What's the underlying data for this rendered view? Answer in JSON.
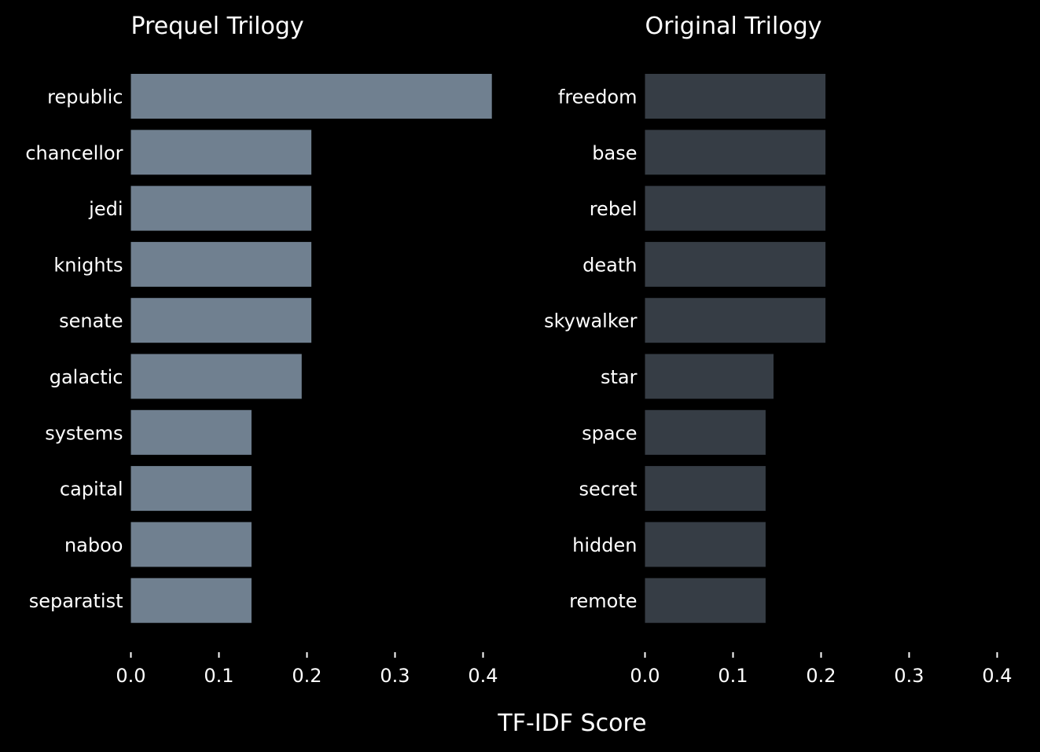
{
  "chart_data": [
    {
      "type": "bar",
      "orientation": "horizontal",
      "title": "Prequel Trilogy",
      "color": "#708090",
      "categories": [
        "republic",
        "chancellor",
        "jedi",
        "knights",
        "senate",
        "galactic",
        "systems",
        "capital",
        "naboo",
        "separatist"
      ],
      "values": [
        0.41,
        0.205,
        0.205,
        0.205,
        0.205,
        0.194,
        0.137,
        0.137,
        0.137,
        0.137
      ],
      "xlim": [
        0,
        0.4
      ],
      "xticks": [
        "0.0",
        "0.1",
        "0.2",
        "0.3",
        "0.4"
      ],
      "grid": false
    },
    {
      "type": "bar",
      "orientation": "horizontal",
      "title": "Original Trilogy",
      "color": "#363d45",
      "categories": [
        "freedom",
        "base",
        "rebel",
        "death",
        "skywalker",
        "star",
        "space",
        "secret",
        "hidden",
        "remote"
      ],
      "values": [
        0.205,
        0.205,
        0.205,
        0.205,
        0.205,
        0.146,
        0.137,
        0.137,
        0.137,
        0.137
      ],
      "xlim": [
        0,
        0.4
      ],
      "xticks": [
        "0.0",
        "0.1",
        "0.2",
        "0.3",
        "0.4"
      ],
      "grid": false
    }
  ],
  "xlabel": "TF-IDF Score"
}
